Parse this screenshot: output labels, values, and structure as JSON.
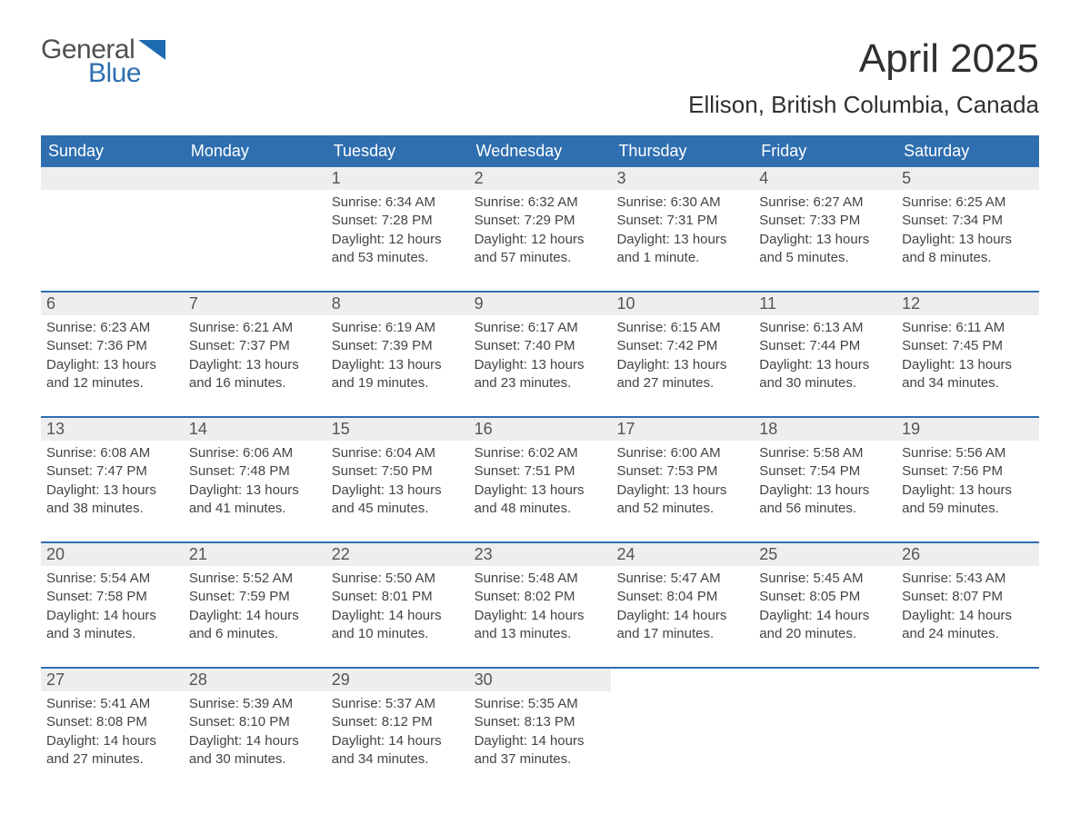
{
  "logo": {
    "line1": "General",
    "line2": "Blue"
  },
  "title": "April 2025",
  "location": "Ellison, British Columbia, Canada",
  "colors": {
    "header_bg": "#2f6fb0",
    "header_text": "#ffffff",
    "daynum_bg": "#eeeeee",
    "week_border": "#2f6fb0",
    "body_text": "#444444",
    "logo_gray": "#505050",
    "logo_blue": "#2f6fb0"
  },
  "day_headers": [
    "Sunday",
    "Monday",
    "Tuesday",
    "Wednesday",
    "Thursday",
    "Friday",
    "Saturday"
  ],
  "weeks": [
    [
      {
        "empty": true
      },
      {
        "empty": true
      },
      {
        "num": "1",
        "sunrise": "Sunrise: 6:34 AM",
        "sunset": "Sunset: 7:28 PM",
        "daylight": "Daylight: 12 hours and 53 minutes."
      },
      {
        "num": "2",
        "sunrise": "Sunrise: 6:32 AM",
        "sunset": "Sunset: 7:29 PM",
        "daylight": "Daylight: 12 hours and 57 minutes."
      },
      {
        "num": "3",
        "sunrise": "Sunrise: 6:30 AM",
        "sunset": "Sunset: 7:31 PM",
        "daylight": "Daylight: 13 hours and 1 minute."
      },
      {
        "num": "4",
        "sunrise": "Sunrise: 6:27 AM",
        "sunset": "Sunset: 7:33 PM",
        "daylight": "Daylight: 13 hours and 5 minutes."
      },
      {
        "num": "5",
        "sunrise": "Sunrise: 6:25 AM",
        "sunset": "Sunset: 7:34 PM",
        "daylight": "Daylight: 13 hours and 8 minutes."
      }
    ],
    [
      {
        "num": "6",
        "sunrise": "Sunrise: 6:23 AM",
        "sunset": "Sunset: 7:36 PM",
        "daylight": "Daylight: 13 hours and 12 minutes."
      },
      {
        "num": "7",
        "sunrise": "Sunrise: 6:21 AM",
        "sunset": "Sunset: 7:37 PM",
        "daylight": "Daylight: 13 hours and 16 minutes."
      },
      {
        "num": "8",
        "sunrise": "Sunrise: 6:19 AM",
        "sunset": "Sunset: 7:39 PM",
        "daylight": "Daylight: 13 hours and 19 minutes."
      },
      {
        "num": "9",
        "sunrise": "Sunrise: 6:17 AM",
        "sunset": "Sunset: 7:40 PM",
        "daylight": "Daylight: 13 hours and 23 minutes."
      },
      {
        "num": "10",
        "sunrise": "Sunrise: 6:15 AM",
        "sunset": "Sunset: 7:42 PM",
        "daylight": "Daylight: 13 hours and 27 minutes."
      },
      {
        "num": "11",
        "sunrise": "Sunrise: 6:13 AM",
        "sunset": "Sunset: 7:44 PM",
        "daylight": "Daylight: 13 hours and 30 minutes."
      },
      {
        "num": "12",
        "sunrise": "Sunrise: 6:11 AM",
        "sunset": "Sunset: 7:45 PM",
        "daylight": "Daylight: 13 hours and 34 minutes."
      }
    ],
    [
      {
        "num": "13",
        "sunrise": "Sunrise: 6:08 AM",
        "sunset": "Sunset: 7:47 PM",
        "daylight": "Daylight: 13 hours and 38 minutes."
      },
      {
        "num": "14",
        "sunrise": "Sunrise: 6:06 AM",
        "sunset": "Sunset: 7:48 PM",
        "daylight": "Daylight: 13 hours and 41 minutes."
      },
      {
        "num": "15",
        "sunrise": "Sunrise: 6:04 AM",
        "sunset": "Sunset: 7:50 PM",
        "daylight": "Daylight: 13 hours and 45 minutes."
      },
      {
        "num": "16",
        "sunrise": "Sunrise: 6:02 AM",
        "sunset": "Sunset: 7:51 PM",
        "daylight": "Daylight: 13 hours and 48 minutes."
      },
      {
        "num": "17",
        "sunrise": "Sunrise: 6:00 AM",
        "sunset": "Sunset: 7:53 PM",
        "daylight": "Daylight: 13 hours and 52 minutes."
      },
      {
        "num": "18",
        "sunrise": "Sunrise: 5:58 AM",
        "sunset": "Sunset: 7:54 PM",
        "daylight": "Daylight: 13 hours and 56 minutes."
      },
      {
        "num": "19",
        "sunrise": "Sunrise: 5:56 AM",
        "sunset": "Sunset: 7:56 PM",
        "daylight": "Daylight: 13 hours and 59 minutes."
      }
    ],
    [
      {
        "num": "20",
        "sunrise": "Sunrise: 5:54 AM",
        "sunset": "Sunset: 7:58 PM",
        "daylight": "Daylight: 14 hours and 3 minutes."
      },
      {
        "num": "21",
        "sunrise": "Sunrise: 5:52 AM",
        "sunset": "Sunset: 7:59 PM",
        "daylight": "Daylight: 14 hours and 6 minutes."
      },
      {
        "num": "22",
        "sunrise": "Sunrise: 5:50 AM",
        "sunset": "Sunset: 8:01 PM",
        "daylight": "Daylight: 14 hours and 10 minutes."
      },
      {
        "num": "23",
        "sunrise": "Sunrise: 5:48 AM",
        "sunset": "Sunset: 8:02 PM",
        "daylight": "Daylight: 14 hours and 13 minutes."
      },
      {
        "num": "24",
        "sunrise": "Sunrise: 5:47 AM",
        "sunset": "Sunset: 8:04 PM",
        "daylight": "Daylight: 14 hours and 17 minutes."
      },
      {
        "num": "25",
        "sunrise": "Sunrise: 5:45 AM",
        "sunset": "Sunset: 8:05 PM",
        "daylight": "Daylight: 14 hours and 20 minutes."
      },
      {
        "num": "26",
        "sunrise": "Sunrise: 5:43 AM",
        "sunset": "Sunset: 8:07 PM",
        "daylight": "Daylight: 14 hours and 24 minutes."
      }
    ],
    [
      {
        "num": "27",
        "sunrise": "Sunrise: 5:41 AM",
        "sunset": "Sunset: 8:08 PM",
        "daylight": "Daylight: 14 hours and 27 minutes."
      },
      {
        "num": "28",
        "sunrise": "Sunrise: 5:39 AM",
        "sunset": "Sunset: 8:10 PM",
        "daylight": "Daylight: 14 hours and 30 minutes."
      },
      {
        "num": "29",
        "sunrise": "Sunrise: 5:37 AM",
        "sunset": "Sunset: 8:12 PM",
        "daylight": "Daylight: 14 hours and 34 minutes."
      },
      {
        "num": "30",
        "sunrise": "Sunrise: 5:35 AM",
        "sunset": "Sunset: 8:13 PM",
        "daylight": "Daylight: 14 hours and 37 minutes."
      },
      {
        "blank": true
      },
      {
        "blank": true
      },
      {
        "blank": true
      }
    ]
  ]
}
